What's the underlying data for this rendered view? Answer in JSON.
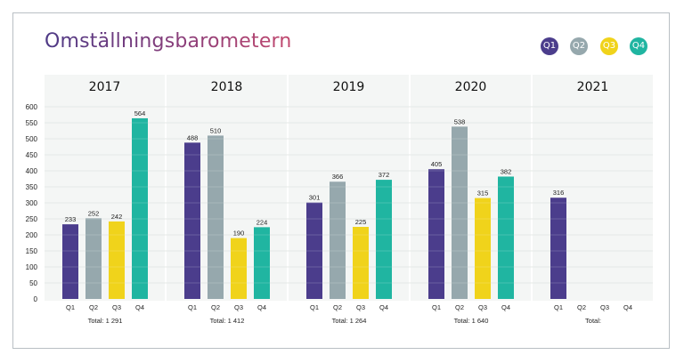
{
  "header": {
    "title": "Omställningsbarometern"
  },
  "legend": [
    {
      "label": "Q1",
      "color": "#4b3d8c"
    },
    {
      "label": "Q2",
      "color": "#96a8ad"
    },
    {
      "label": "Q3",
      "color": "#f0d31b"
    },
    {
      "label": "Q4",
      "color": "#20b5a1"
    }
  ],
  "chart_data": {
    "type": "bar",
    "title": "Omställningsbarometern",
    "categories": [
      "Q1",
      "Q2",
      "Q3",
      "Q4"
    ],
    "ylim": [
      0,
      600
    ],
    "yticks": [
      0,
      50,
      100,
      150,
      200,
      250,
      300,
      350,
      400,
      450,
      500,
      550,
      600
    ],
    "grid": true,
    "legend_position": "top-right",
    "panels": [
      {
        "year": "2017",
        "values": [
          233,
          252,
          242,
          564
        ],
        "total": "Total: 1 291"
      },
      {
        "year": "2018",
        "values": [
          488,
          510,
          190,
          224
        ],
        "total": "Total: 1 412"
      },
      {
        "year": "2019",
        "values": [
          301,
          366,
          225,
          372
        ],
        "total": "Total: 1 264"
      },
      {
        "year": "2020",
        "values": [
          405,
          538,
          315,
          382
        ],
        "total": "Total: 1 640"
      },
      {
        "year": "2021",
        "values": [
          316,
          null,
          null,
          null
        ],
        "total": "Total:"
      }
    ]
  }
}
